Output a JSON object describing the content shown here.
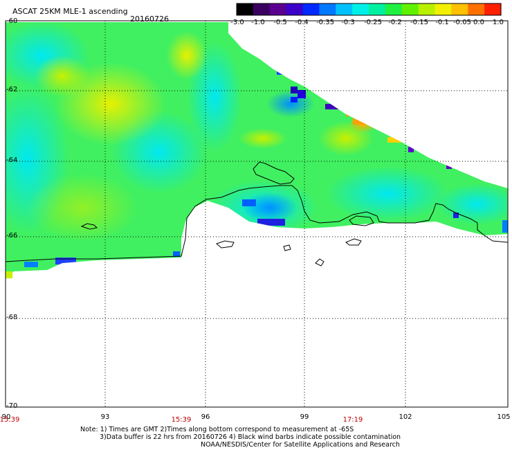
{
  "header": {
    "title": "ASCAT 25KM MLE-1 ascending",
    "date": "20160726"
  },
  "colorbar": {
    "labels": [
      "-3.0",
      "-1.0",
      "-0.5",
      "-0.4",
      "-0.35",
      "-0.3",
      "-0.25",
      "-0.2",
      "-0.15",
      "-0.1",
      "-0.05",
      "0.0",
      "1.0"
    ],
    "colors": [
      "#000000",
      "#3a0060",
      "#5a0090",
      "#3c00c8",
      "#0028ff",
      "#0078ff",
      "#00c0ff",
      "#00f0e8",
      "#00f0a0",
      "#20f040",
      "#60f000",
      "#b8f000",
      "#f0f000",
      "#ffc000",
      "#ff7000",
      "#ff2000"
    ]
  },
  "map": {
    "lat_labels": [
      "-60",
      "-62",
      "-64",
      "-66",
      "-68",
      "-70"
    ],
    "lon_labels": [
      "90",
      "93",
      "96",
      "99",
      "102",
      "105"
    ],
    "time_labels": [
      "15:39",
      "15:39",
      "17:19"
    ]
  },
  "notes": {
    "line1": "Note: 1) Times are GMT 2)Times along bottom correspond to measurement at -65S",
    "line2": "3)Data buffer is 22 hrs from 20160726 4) Black wind barbs indicate possible contamination",
    "line3": "NOAA/NESDIS/Center for Satellite Applications and Research"
  }
}
